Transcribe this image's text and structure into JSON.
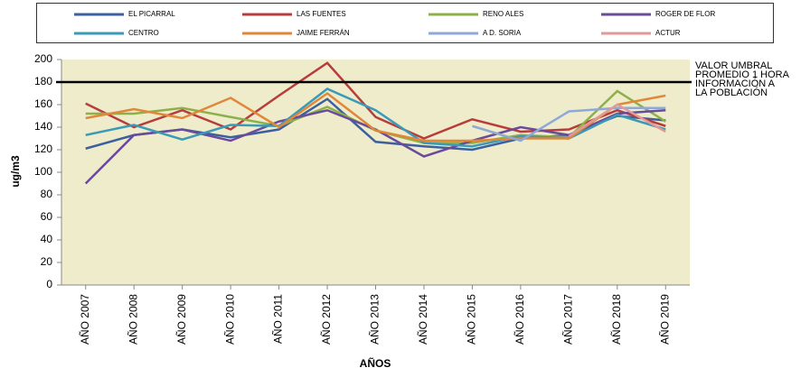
{
  "chart_data": {
    "type": "line",
    "y_label": "ug/m3",
    "x_label": "AÑOS",
    "categories": [
      "AÑO 2007",
      "AÑO 2008",
      "AÑO 2009",
      "AÑO 2010",
      "AÑO 2011",
      "AÑO 2012",
      "AÑO 2013",
      "AÑO 2014",
      "AÑO 2015",
      "AÑO 2016",
      "AÑO 2017",
      "AÑO 2018",
      "AÑO 2019"
    ],
    "series": [
      {
        "name": "EL PICARRAL",
        "color": "#3c5fa0",
        "values": [
          121,
          133,
          138,
          131,
          138,
          165,
          127,
          123,
          120,
          130,
          133,
          150,
          146
        ]
      },
      {
        "name": "LAS FUENTES",
        "color": "#b83c3c",
        "values": [
          161,
          140,
          155,
          138,
          168,
          197,
          149,
          130,
          147,
          136,
          138,
          155,
          141
        ]
      },
      {
        "name": "RENO ALES",
        "color": "#8db04a",
        "values": [
          152,
          152,
          157,
          149,
          141,
          158,
          137,
          126,
          126,
          133,
          131,
          172,
          145
        ]
      },
      {
        "name": "ROGER DE FLOR",
        "color": "#6a4a9a",
        "values": [
          90,
          133,
          138,
          128,
          145,
          155,
          138,
          114,
          128,
          140,
          133,
          152,
          155
        ]
      },
      {
        "name": "CENTRO",
        "color": "#3a9ab8",
        "values": [
          133,
          142,
          129,
          142,
          141,
          174,
          155,
          126,
          123,
          132,
          130,
          151,
          138
        ]
      },
      {
        "name": "JAIME FERRÁN",
        "color": "#e0873a",
        "values": [
          148,
          156,
          148,
          166,
          140,
          170,
          137,
          128,
          128,
          130,
          130,
          160,
          168
        ]
      },
      {
        "name": "A D. SORIA",
        "color": "#8fa8d8",
        "values": [
          null,
          null,
          null,
          null,
          null,
          null,
          null,
          null,
          141,
          128,
          154,
          157,
          157
        ]
      },
      {
        "name": "ACTUR",
        "color": "#e09a9a",
        "values": [
          null,
          null,
          null,
          null,
          null,
          null,
          null,
          null,
          null,
          null,
          132,
          160,
          136
        ]
      }
    ],
    "ylim": [
      0,
      200
    ],
    "yticks": [
      0,
      20,
      40,
      60,
      80,
      100,
      120,
      140,
      160,
      180,
      200
    ],
    "grid": false,
    "threshold": {
      "value": 180,
      "lines": [
        "VALOR UMBRAL",
        "PROMEDIO 1 HORA",
        "INFORMACIÓN A",
        "LA POBLACIÓN"
      ]
    }
  }
}
